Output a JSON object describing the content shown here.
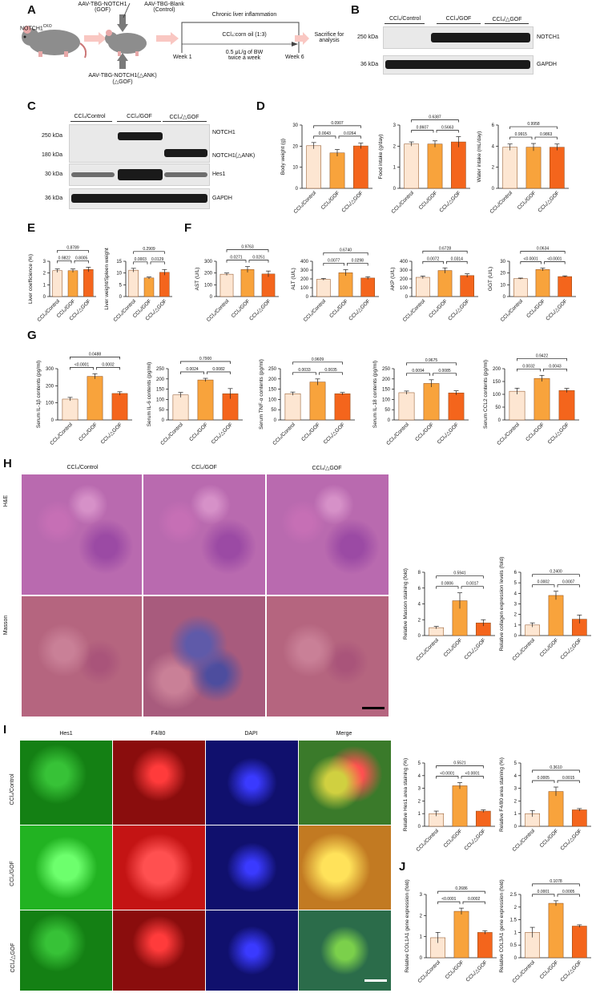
{
  "panels": {
    "A": "A",
    "B": "B",
    "C": "C",
    "D": "D",
    "E": "E",
    "F": "F",
    "G": "G",
    "H": "H",
    "I": "I",
    "J": "J"
  },
  "schematic": {
    "mouse_label": "NOTCH1",
    "mouse_sup": "CKO",
    "gof_vector": "AAV-TBG-NOTCH1",
    "gof_short": "(GOF)",
    "blank_vector": "AAV-TBG-Blank",
    "blank_short": "(Control)",
    "dank_vector": "AAV-TBG-NOTCH1(△ANK)",
    "dank_short": "(△GOF)",
    "chronic": "Chronic liver inflammation",
    "treatment": "CCl₄:corn oil (1:3)",
    "week1": "Week 1",
    "week6": "Week 6",
    "dose": "0.5 μL/g of BW",
    "freq": "twice a week",
    "sacrifice": "Sacrifice for",
    "analysis": "analysis"
  },
  "groups": [
    "CCl₄/Control",
    "CCl₄/GOF",
    "CCl₄/△GOF"
  ],
  "colors": {
    "control": "#fde6d2",
    "gof": "#f8a33c",
    "dgof": "#f4651c",
    "edge": "#8a4a1a"
  },
  "blotB": {
    "rows": [
      {
        "kda": "250 kDa",
        "name": "NOTCH1"
      },
      {
        "kda": "36 kDa",
        "name": "GAPDH"
      }
    ]
  },
  "blotC": {
    "rows": [
      {
        "kda": "250 kDa",
        "name": "NOTCH1"
      },
      {
        "kda": "180 kDa",
        "name": "NOTCH1(△ANK)"
      },
      {
        "kda": "30 kDa",
        "name": "Hes1"
      },
      {
        "kda": "36 kDa",
        "name": "GAPDH"
      }
    ]
  },
  "histology": {
    "rows": [
      "H&E",
      "Masson"
    ]
  },
  "ifluor": {
    "cols": [
      "Hes1",
      "F4/80",
      "DAPI",
      "Merge"
    ]
  },
  "chart_data": [
    {
      "panel": "D",
      "type": "bar",
      "ylabel": "Body weight (g)",
      "ylim": [
        0,
        30
      ],
      "yticks": [
        0,
        10,
        20,
        30
      ],
      "values": [
        20.2,
        16.8,
        20.1
      ],
      "errors": [
        1.5,
        1.6,
        1.3
      ],
      "p": {
        "ab": "0.0043",
        "bc": "0.0264",
        "ac": "0.0907"
      }
    },
    {
      "panel": "D",
      "type": "bar",
      "ylabel": "Food intake (g/day)",
      "ylim": [
        0,
        3
      ],
      "yticks": [
        0,
        1,
        2,
        3
      ],
      "values": [
        2.1,
        2.1,
        2.2
      ],
      "errors": [
        0.1,
        0.15,
        0.25
      ],
      "p": {
        "ab": "0.8607",
        "bc": "0.5663",
        "ac": "0.6387"
      }
    },
    {
      "panel": "D",
      "type": "bar",
      "ylabel": "Water intake (mL/day)",
      "ylim": [
        0,
        6
      ],
      "yticks": [
        0,
        2,
        4,
        6
      ],
      "values": [
        3.9,
        3.9,
        3.9
      ],
      "errors": [
        0.3,
        0.35,
        0.3
      ],
      "p": {
        "ab": "0.9915",
        "bc": "0.9863",
        "ac": "0.9958"
      }
    },
    {
      "panel": "E",
      "type": "bar",
      "ylabel": "Liver coefficience (%)",
      "ylim": [
        0,
        3
      ],
      "yticks": [
        0,
        1,
        2,
        3
      ],
      "values": [
        2.2,
        2.2,
        2.3
      ],
      "errors": [
        0.15,
        0.15,
        0.2
      ],
      "p": {
        "ab": "0.9822",
        "bc": "0.8005",
        "ac": "0.8789"
      }
    },
    {
      "panel": "E",
      "type": "bar",
      "ylabel": "Liver weight/Spleen weight",
      "ylim": [
        0,
        15
      ],
      "yticks": [
        0,
        5,
        10,
        15
      ],
      "values": [
        11.2,
        7.9,
        10.3
      ],
      "errors": [
        0.8,
        0.4,
        1.2
      ],
      "p": {
        "ab": "0.0003",
        "bc": "0.0129",
        "ac": "0.2909"
      }
    },
    {
      "panel": "F",
      "type": "bar",
      "ylabel": "AST (U/L)",
      "ylim": [
        0,
        300
      ],
      "yticks": [
        0,
        100,
        200,
        300
      ],
      "values": [
        190,
        230,
        192
      ],
      "errors": [
        10,
        25,
        25
      ],
      "p": {
        "ab": "0.0271",
        "bc": "0.0251",
        "ac": "0.9763"
      }
    },
    {
      "panel": "F",
      "type": "bar",
      "ylabel": "ALT (U/L)",
      "ylim": [
        0,
        400
      ],
      "yticks": [
        0,
        100,
        200,
        300,
        400
      ],
      "values": [
        195,
        270,
        210
      ],
      "errors": [
        10,
        35,
        15
      ],
      "p": {
        "ab": "0.0077",
        "bc": "0.0298",
        "ac": "0.6740"
      }
    },
    {
      "panel": "F",
      "type": "bar",
      "ylabel": "AKP (U/L)",
      "ylim": [
        0,
        400
      ],
      "yticks": [
        0,
        100,
        200,
        300,
        400
      ],
      "values": [
        218,
        295,
        238
      ],
      "errors": [
        15,
        30,
        20
      ],
      "p": {
        "ab": "0.0072",
        "bc": "0.0314",
        "ac": "0.6728"
      }
    },
    {
      "panel": "F",
      "type": "bar",
      "ylabel": "GGT (U/L)",
      "ylim": [
        0,
        30
      ],
      "yticks": [
        0,
        10,
        20,
        30
      ],
      "values": [
        15.2,
        23.0,
        17.0
      ],
      "errors": [
        0.5,
        1.2,
        0.6
      ],
      "p": {
        "ab": "<0.0001",
        "bc": "<0.0001",
        "ac": "0.0634"
      }
    },
    {
      "panel": "G",
      "type": "bar",
      "ylabel": "Serum IL-1β contents (pg/ml)",
      "ylim": [
        0,
        300
      ],
      "yticks": [
        0,
        100,
        200,
        300
      ],
      "values": [
        122,
        255,
        155
      ],
      "errors": [
        10,
        15,
        10
      ],
      "p": {
        "ab": "<0.0001",
        "bc": "0.0002",
        "ac": "0.0488"
      }
    },
    {
      "panel": "G",
      "type": "bar",
      "ylabel": "Serum IL-6 contents (pg/ml)",
      "ylim": [
        0,
        250
      ],
      "yticks": [
        0,
        50,
        100,
        150,
        200,
        250
      ],
      "values": [
        122,
        195,
        128
      ],
      "errors": [
        12,
        8,
        25
      ],
      "p": {
        "ab": "0.0024",
        "bc": "0.0082",
        "ac": "0.7900"
      }
    },
    {
      "panel": "G",
      "type": "bar",
      "ylabel": "Serum TNF-α contents (pg/ml)",
      "ylim": [
        0,
        250
      ],
      "yticks": [
        0,
        50,
        100,
        150,
        200,
        250
      ],
      "values": [
        128,
        185,
        128
      ],
      "errors": [
        8,
        15,
        6
      ],
      "p": {
        "ab": "0.0033",
        "bc": "0.0035",
        "ac": "0.9609"
      }
    },
    {
      "panel": "G",
      "type": "bar",
      "ylabel": "Serum IL-18 contents (pg/ml)",
      "ylim": [
        0,
        250
      ],
      "yticks": [
        0,
        50,
        100,
        150,
        200,
        250
      ],
      "values": [
        133,
        178,
        132
      ],
      "errors": [
        8,
        18,
        10
      ],
      "p": {
        "ab": "0.0094",
        "bc": "0.0085",
        "ac": "0.9675"
      }
    },
    {
      "panel": "G",
      "type": "bar",
      "ylabel": "Serum CCL2 contents (pg/ml)",
      "ylim": [
        0,
        200
      ],
      "yticks": [
        0,
        50,
        100,
        150,
        200
      ],
      "values": [
        112,
        162,
        115
      ],
      "errors": [
        12,
        12,
        8
      ],
      "p": {
        "ab": "0.0032",
        "bc": "0.0043",
        "ac": "0.9422"
      }
    },
    {
      "panel": "H",
      "type": "bar",
      "ylabel": "Relative Masson staining (fold)",
      "ylim": [
        0,
        8
      ],
      "yticks": [
        0,
        2,
        4,
        6,
        8
      ],
      "values": [
        1.0,
        4.4,
        1.6
      ],
      "errors": [
        0.15,
        1.0,
        0.4
      ],
      "p": {
        "ab": "0.0006",
        "bc": "0.0017",
        "ac": "0.5941"
      }
    },
    {
      "panel": "H",
      "type": "bar",
      "ylabel": "Relative collagen expression levels (fold)",
      "ylim": [
        0,
        6
      ],
      "yticks": [
        0,
        1,
        2,
        3,
        4,
        5,
        6
      ],
      "values": [
        1.0,
        3.8,
        1.55
      ],
      "errors": [
        0.2,
        0.4,
        0.4
      ],
      "p": {
        "ab": "0.0002",
        "bc": "0.0007",
        "ac": "0.2400"
      }
    },
    {
      "panel": "I",
      "type": "bar",
      "ylabel": "Relative Hes1 area staining (%)",
      "ylim": [
        0,
        5
      ],
      "yticks": [
        0,
        1,
        2,
        3,
        4,
        5
      ],
      "values": [
        1.0,
        3.2,
        1.2
      ],
      "errors": [
        0.2,
        0.25,
        0.1
      ],
      "p": {
        "ab": "<0.0001",
        "bc": "<0.0001",
        "ac": "0.5521"
      }
    },
    {
      "panel": "I",
      "type": "bar",
      "ylabel": "Relative F4/80 area staining (%)",
      "ylim": [
        0,
        5
      ],
      "yticks": [
        0,
        1,
        2,
        3,
        4,
        5
      ],
      "values": [
        1.0,
        2.75,
        1.3
      ],
      "errors": [
        0.25,
        0.35,
        0.1
      ],
      "p": {
        "ab": "0.0005",
        "bc": "0.0015",
        "ac": "0.3610"
      }
    },
    {
      "panel": "J",
      "type": "bar",
      "ylabel": "Relative COL1A1 gene expression (fold)",
      "ylim": [
        0,
        3
      ],
      "yticks": [
        0,
        1,
        2,
        3
      ],
      "values": [
        0.95,
        2.2,
        1.2
      ],
      "errors": [
        0.25,
        0.15,
        0.08
      ],
      "p": {
        "ab": "<0.0001",
        "bc": "0.0002",
        "ac": "0.2686"
      }
    },
    {
      "panel": "J",
      "type": "bar",
      "ylabel": "Relative COL3A1 gene expression (fold)",
      "ylim": [
        0,
        2.5
      ],
      "yticks": [
        0,
        0.5,
        1.0,
        1.5,
        2.0,
        2.5
      ],
      "values": [
        1.0,
        2.15,
        1.25
      ],
      "errors": [
        0.2,
        0.1,
        0.05
      ],
      "p": {
        "ab": "0.0001",
        "bc": "0.0005",
        "ac": "0.1078"
      }
    }
  ]
}
